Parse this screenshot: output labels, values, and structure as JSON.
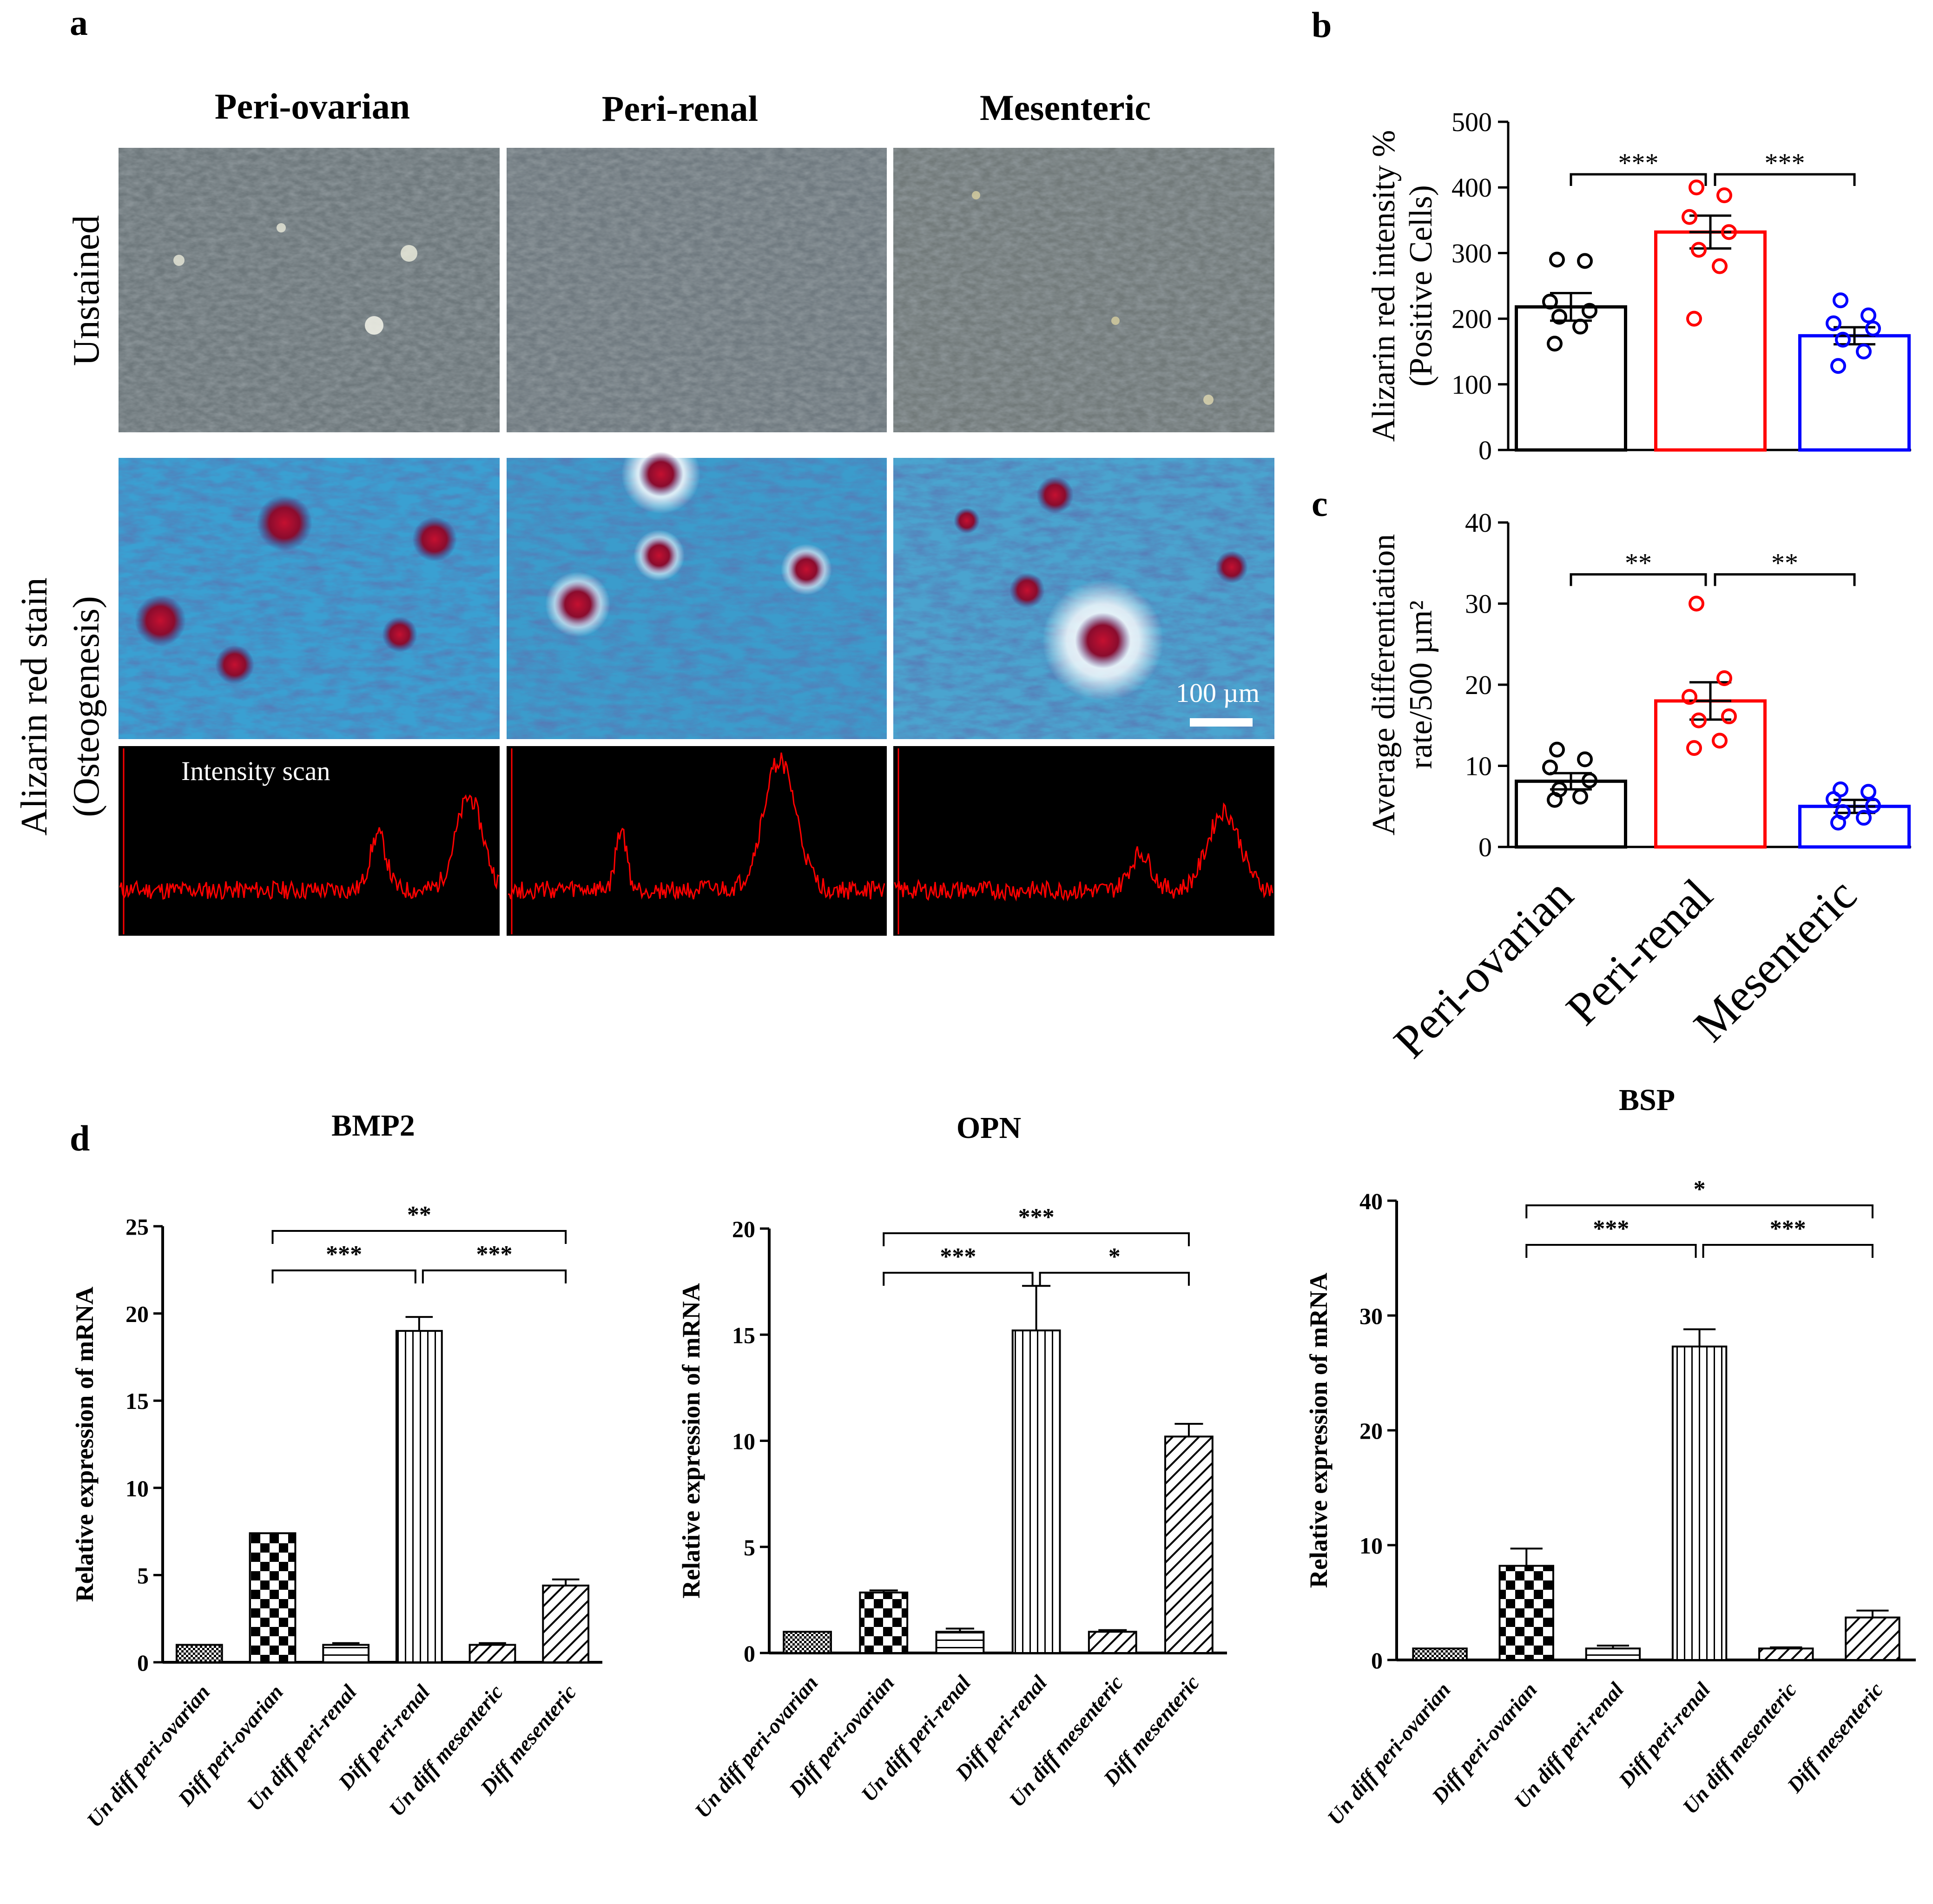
{
  "panel_labels": {
    "a": "a",
    "b": "b",
    "c": "c",
    "d": "d"
  },
  "panel_a": {
    "column_headers": [
      "Peri-ovarian",
      "Peri-renal",
      "Mesenteric"
    ],
    "row_labels": {
      "unstained": "Unstained",
      "stain_line1": "Alizarin red stain",
      "stain_line2": "(Osteogenesis)"
    },
    "scale_bar": "100 µm",
    "scan_label": "Intensity scan",
    "colors": {
      "unstained": "#707a7e",
      "stained": "#3f9fcf",
      "nodule": "#a0102a",
      "scan_bg": "#000000",
      "scan_line": "#ff0000"
    }
  },
  "chart_data": [
    {
      "id": "b",
      "type": "bar",
      "categories": [
        "Peri-ovarian",
        "Peri-renal",
        "Mesenteric"
      ],
      "values": [
        218,
        332,
        174
      ],
      "errors": [
        21,
        25,
        13
      ],
      "points": [
        [
          290,
          288,
          226,
          212,
          203,
          188,
          162
        ],
        [
          400,
          388,
          355,
          332,
          305,
          280,
          200
        ],
        [
          228,
          205,
          193,
          185,
          168,
          150,
          128
        ]
      ],
      "colors": [
        "#000000",
        "#ff0000",
        "#0000ff"
      ],
      "ylabel_line1": "Alizarin red intensity %",
      "ylabel_line2": "(Positive Cells)",
      "ylim": [
        0,
        500
      ],
      "yticks": [
        "0",
        "100",
        "200",
        "300",
        "400",
        "500"
      ],
      "significance": [
        {
          "from": 0,
          "to": 1,
          "label": "***"
        },
        {
          "from": 1,
          "to": 2,
          "label": "***"
        }
      ]
    },
    {
      "id": "c",
      "type": "bar",
      "categories": [
        "Peri-ovarian",
        "Peri-renal",
        "Mesenteric"
      ],
      "values": [
        8.1,
        18.0,
        5.0
      ],
      "errors": [
        1.0,
        2.3,
        0.8
      ],
      "points": [
        [
          12,
          10.8,
          9.8,
          8.2,
          7.1,
          6.2,
          5.8
        ],
        [
          30,
          20.8,
          18.5,
          16.1,
          15.6,
          13.1,
          12.2
        ],
        [
          7.1,
          6.8,
          5.9,
          5.1,
          4.3,
          3.6,
          3.0
        ]
      ],
      "colors": [
        "#000000",
        "#ff0000",
        "#0000ff"
      ],
      "ylabel_line1": "Average differentiation",
      "ylabel_line2": "rate/500 µm²",
      "ylim": [
        0,
        40
      ],
      "yticks": [
        "0",
        "10",
        "20",
        "30",
        "40"
      ],
      "xtick_labels": [
        "Peri-ovarian",
        "Peri-renal",
        "Mesenteric"
      ],
      "significance": [
        {
          "from": 0,
          "to": 1,
          "label": "**"
        },
        {
          "from": 1,
          "to": 2,
          "label": "**"
        }
      ]
    },
    {
      "id": "d1",
      "type": "bar",
      "title": "BMP2",
      "categories": [
        "Un diff peri-ovarian",
        "Diff peri-ovarian",
        "Un diff peri-renal",
        "Diff peri-renal",
        "Un diff mesenteric",
        "Diff mesenteric"
      ],
      "values": [
        1.0,
        7.4,
        1.0,
        19.0,
        1.0,
        4.4
      ],
      "errors": [
        0.0,
        0.0,
        0.1,
        0.8,
        0.1,
        0.35
      ],
      "patterns": [
        "fine",
        "check",
        "hstripe",
        "vstripe",
        "diag",
        "diag"
      ],
      "ylabel": "Relative expression of mRNA",
      "ylim": [
        0,
        25
      ],
      "yticks": [
        "0",
        "5",
        "10",
        "15",
        "20",
        "25"
      ],
      "significance": [
        {
          "from": 1,
          "to": 5,
          "label": "**",
          "level": 2
        },
        {
          "from": 1,
          "to": 3,
          "label": "***",
          "level": 1
        },
        {
          "from": 3,
          "to": 5,
          "label": "***",
          "level": 1
        }
      ]
    },
    {
      "id": "d2",
      "type": "bar",
      "title": "OPN",
      "categories": [
        "Un diff peri-ovarian",
        "Diff peri-ovarian",
        "Un diff peri-renal",
        "Diff peri-renal",
        "Un diff mesenteric",
        "Diff mesenteric"
      ],
      "values": [
        1.0,
        2.85,
        1.0,
        15.2,
        1.0,
        10.2
      ],
      "errors": [
        0.0,
        0.1,
        0.15,
        2.1,
        0.08,
        0.6
      ],
      "patterns": [
        "fine",
        "check",
        "hstripe",
        "vstripe",
        "diag",
        "diag"
      ],
      "ylabel": "Relative expression of mRNA",
      "ylim": [
        0,
        20
      ],
      "yticks": [
        "0",
        "5",
        "10",
        "15",
        "20"
      ],
      "significance": [
        {
          "from": 1,
          "to": 5,
          "label": "***",
          "level": 2
        },
        {
          "from": 1,
          "to": 3,
          "label": "***",
          "level": 1
        },
        {
          "from": 3,
          "to": 5,
          "label": "*",
          "level": 1
        }
      ]
    },
    {
      "id": "d3",
      "type": "bar",
      "title": "BSP",
      "categories": [
        "Un diff peri-ovarian",
        "Diff peri-ovarian",
        "Un diff peri-renal",
        "Diff peri-renal",
        "Un diff mesenteric",
        "Diff mesenteric"
      ],
      "values": [
        1.0,
        8.2,
        1.0,
        27.3,
        1.0,
        3.7
      ],
      "errors": [
        0.0,
        1.5,
        0.25,
        1.5,
        0.1,
        0.6
      ],
      "patterns": [
        "fine",
        "check",
        "hstripe",
        "vstripe",
        "diag",
        "diag"
      ],
      "ylabel": "Relative expression of mRNA",
      "ylim": [
        0,
        40
      ],
      "yticks": [
        "0",
        "10",
        "20",
        "30",
        "40"
      ],
      "significance": [
        {
          "from": 1,
          "to": 5,
          "label": "*",
          "level": 2
        },
        {
          "from": 1,
          "to": 3,
          "label": "***",
          "level": 1
        },
        {
          "from": 3,
          "to": 5,
          "label": "***",
          "level": 1
        }
      ]
    }
  ]
}
